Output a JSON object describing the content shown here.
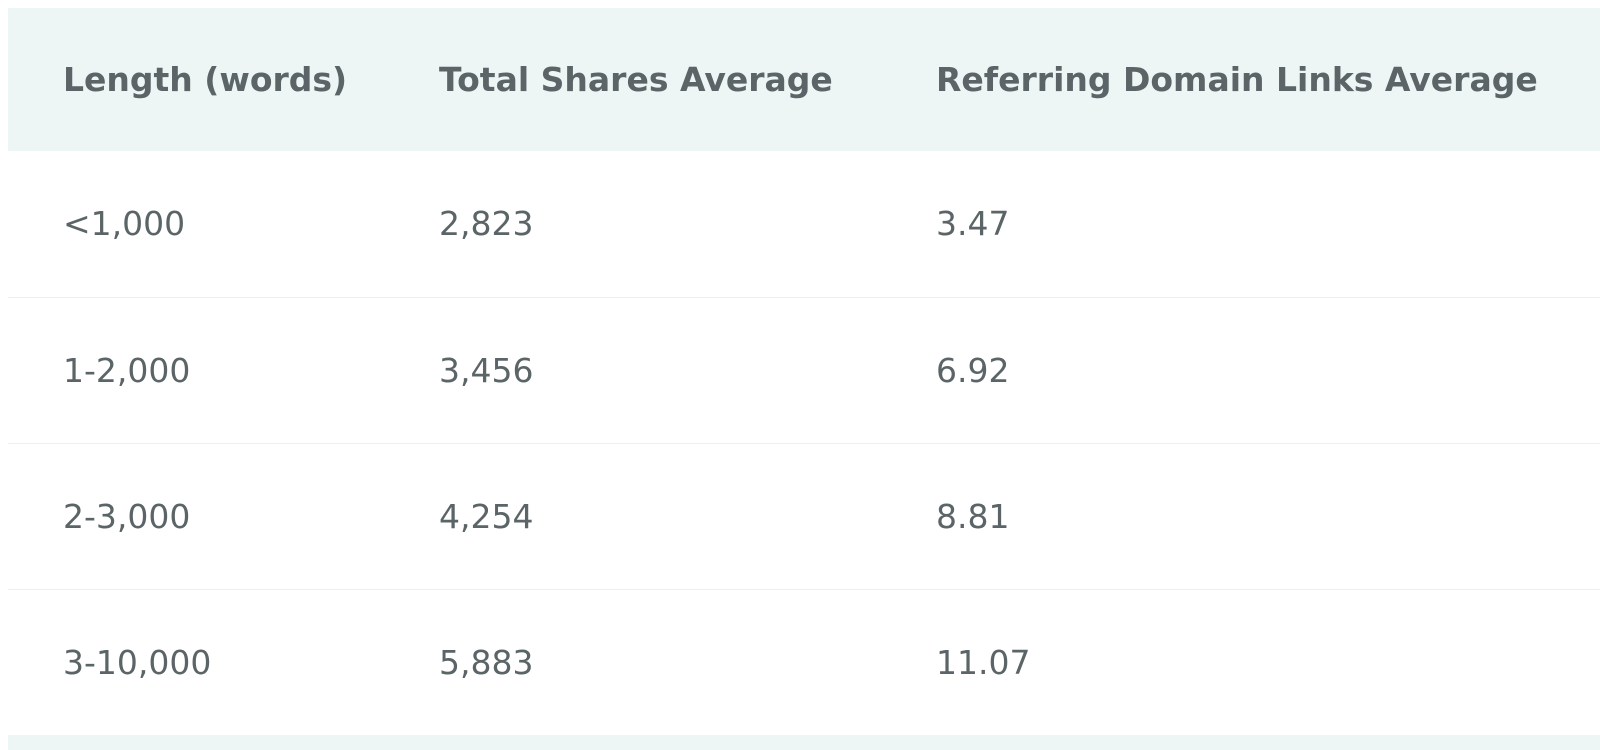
{
  "table": {
    "headers": [
      "Length (words)",
      "Total Shares Average",
      "Referring Domain Links Average"
    ],
    "rows": [
      [
        "<1,000",
        "2,823",
        "3.47"
      ],
      [
        "1-2,000",
        "3,456",
        "6.92"
      ],
      [
        "2-3,000",
        "4,254",
        "8.81"
      ],
      [
        "3-10,000",
        "5,883",
        "11.07"
      ]
    ]
  }
}
